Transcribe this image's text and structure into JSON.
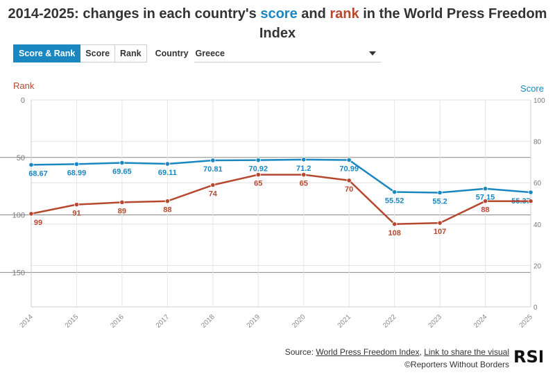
{
  "title": {
    "part1": "2014-2025: changes in each country's ",
    "score_word": "score",
    "part2": " and ",
    "rank_word": "rank",
    "part3": " in the World Press Freedom Index"
  },
  "controls": {
    "buttons": [
      "Score & Rank",
      "Score",
      "Rank"
    ],
    "active_button": "Score & Rank",
    "country_label": "Country",
    "country_value": "Greece"
  },
  "colors": {
    "score": "#1a87c0",
    "rank": "#b5482f",
    "accent": "#1a87c0"
  },
  "chart_data": {
    "type": "line",
    "categories": [
      "2014",
      "2015",
      "2016",
      "2017",
      "2018",
      "2019",
      "2020",
      "2021",
      "2022",
      "2023",
      "2024",
      "2025"
    ],
    "series": [
      {
        "axis": "right",
        "color": "#1a87c0",
        "values": [
          68.67,
          68.99,
          69.65,
          69.11,
          70.81,
          70.92,
          71.2,
          70.99,
          55.52,
          55.2,
          57.15,
          55.37
        ],
        "labels": [
          "68.67",
          "68.99",
          "69.65",
          "69.11",
          "70.81",
          "70.92",
          "71.2",
          "70.99",
          "55.52",
          "55.2",
          "57.15",
          "55.37"
        ]
      },
      {
        "axis": "left",
        "color": "#b5482f",
        "values": [
          99,
          91,
          89,
          88,
          74,
          65,
          65,
          70,
          108,
          107,
          88,
          88
        ],
        "labels": [
          "99",
          "91",
          "89",
          "88",
          "74",
          "65",
          "65",
          "70",
          "108",
          "107",
          "88",
          ""
        ]
      }
    ],
    "left_axis": {
      "label": "Rank",
      "range": [
        0,
        180
      ],
      "reversed": true,
      "ticks": [
        "0",
        "50",
        "100",
        "150"
      ]
    },
    "right_axis": {
      "label": "Score",
      "range": [
        0,
        100
      ],
      "ticks": [
        "0",
        "20",
        "40",
        "60",
        "80",
        "100"
      ]
    },
    "grid": true
  },
  "footer": {
    "source_prefix": "Source: ",
    "source_link": "World Press Freedom Index",
    "separator": ", ",
    "share_link": "Link to share the visual",
    "copyright": "©Reporters Without Borders",
    "logo_text": "RSF"
  }
}
